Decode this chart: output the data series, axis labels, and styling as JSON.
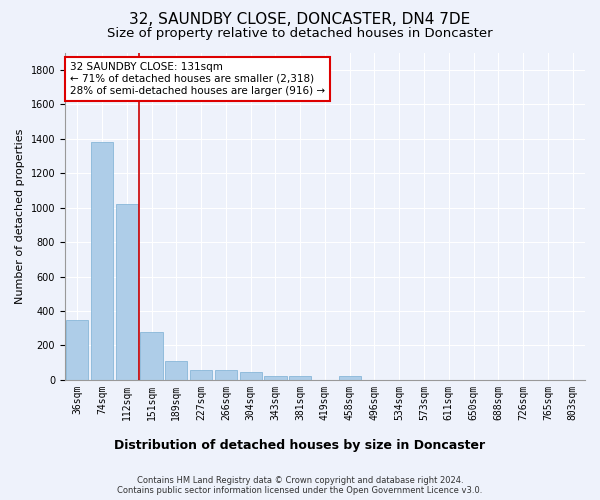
{
  "title": "32, SAUNDBY CLOSE, DONCASTER, DN4 7DE",
  "subtitle": "Size of property relative to detached houses in Doncaster",
  "xlabel": "Distribution of detached houses by size in Doncaster",
  "ylabel": "Number of detached properties",
  "footer_line1": "Contains HM Land Registry data © Crown copyright and database right 2024.",
  "footer_line2": "Contains public sector information licensed under the Open Government Licence v3.0.",
  "bar_labels": [
    "36sqm",
    "74sqm",
    "112sqm",
    "151sqm",
    "189sqm",
    "227sqm",
    "266sqm",
    "304sqm",
    "343sqm",
    "381sqm",
    "419sqm",
    "458sqm",
    "496sqm",
    "534sqm",
    "573sqm",
    "611sqm",
    "650sqm",
    "688sqm",
    "726sqm",
    "765sqm",
    "803sqm"
  ],
  "bar_values": [
    350,
    1380,
    1020,
    280,
    110,
    60,
    55,
    45,
    20,
    20,
    0,
    20,
    0,
    0,
    0,
    0,
    0,
    0,
    0,
    0,
    0
  ],
  "bar_color": "#aecde8",
  "bar_edge_color": "#7aafd4",
  "ylim": [
    0,
    1900
  ],
  "yticks": [
    0,
    200,
    400,
    600,
    800,
    1000,
    1200,
    1400,
    1600,
    1800
  ],
  "property_line_x": 2.5,
  "annotation_text_line1": "32 SAUNDBY CLOSE: 131sqm",
  "annotation_text_line2": "← 71% of detached houses are smaller (2,318)",
  "annotation_text_line3": "28% of semi-detached houses are larger (916) →",
  "annotation_box_color": "#dd0000",
  "vline_color": "#cc0000",
  "background_color": "#eef2fb",
  "grid_color": "#ffffff",
  "title_fontsize": 11,
  "subtitle_fontsize": 9.5,
  "ylabel_fontsize": 8,
  "xlabel_fontsize": 9,
  "tick_fontsize": 7,
  "annotation_fontsize": 7.5,
  "footer_fontsize": 6
}
